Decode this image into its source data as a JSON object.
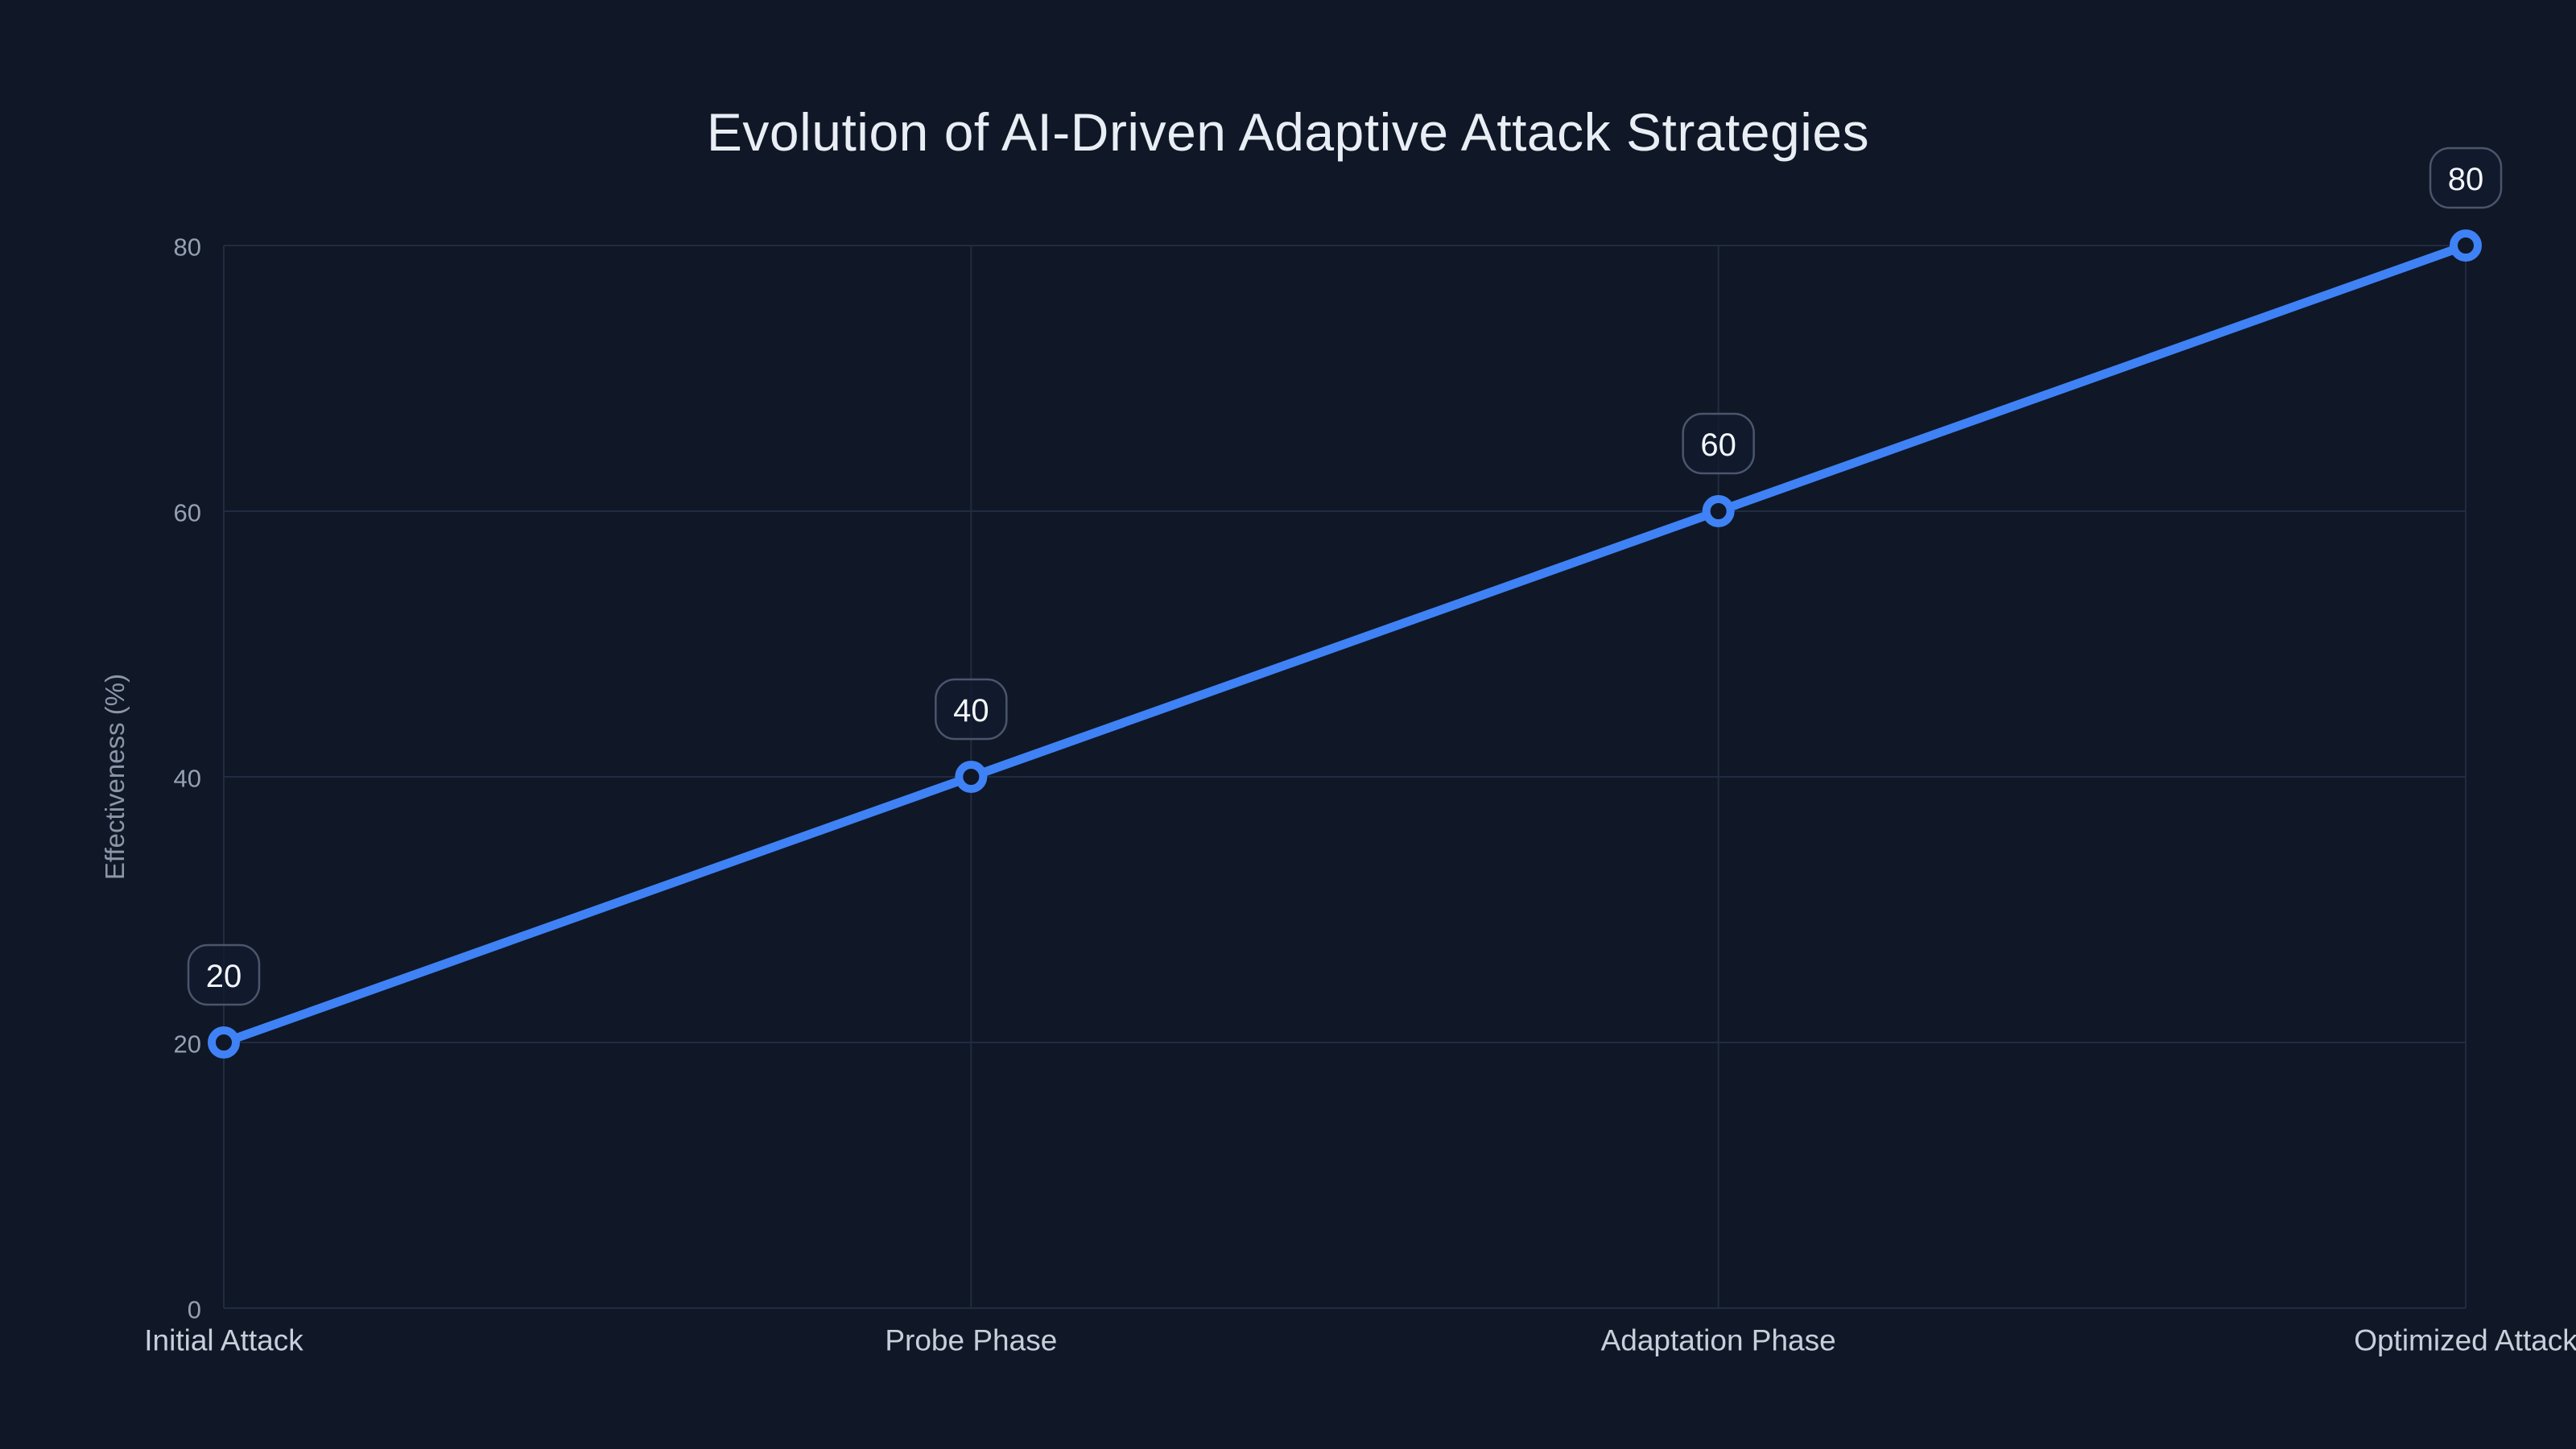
{
  "chart_data": {
    "type": "line",
    "title": "Evolution of AI-Driven Adaptive Attack Strategies",
    "categories": [
      "Initial Attack",
      "Probe Phase",
      "Adaptation Phase",
      "Optimized Attack"
    ],
    "values": [
      20,
      40,
      60,
      80
    ],
    "point_labels": [
      "20",
      "40",
      "60",
      "80"
    ],
    "xlabel": "",
    "ylabel": "Effectiveness (%)",
    "ylim": [
      0,
      80
    ],
    "yticks": [
      0,
      20,
      40,
      60,
      80
    ],
    "grid": true,
    "legend": "none",
    "colors": {
      "background": "#101726",
      "grid": "#212c42",
      "line": "#3f82f6",
      "marker_fill": "#101726",
      "title_text": "#e9eef5",
      "y_tick_text": "#95a0b3",
      "x_tick_text": "#c7cfdb",
      "axis_title_text": "#8b96a9",
      "label_text": "#f2f6fb",
      "label_box_fill": "#121b2e",
      "label_box_border": "#4a566c"
    }
  }
}
